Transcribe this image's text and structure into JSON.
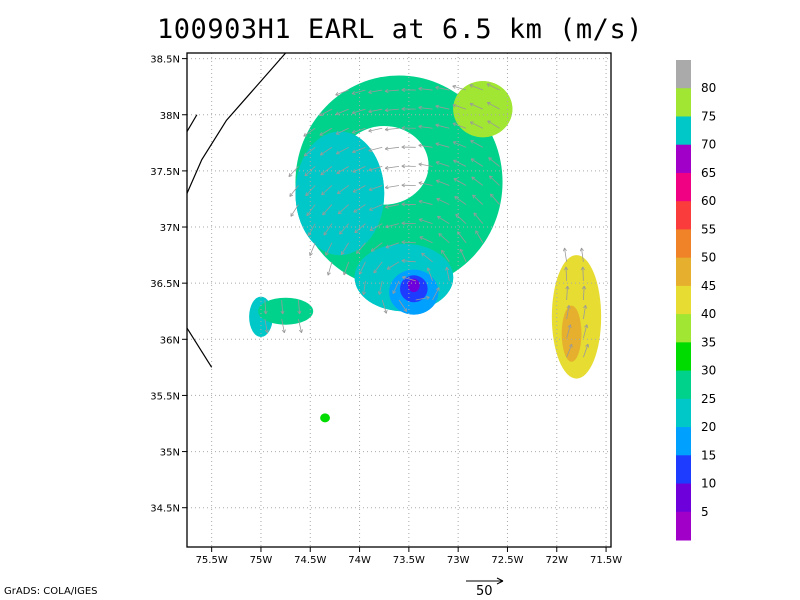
{
  "title": "100903H1 EARL at 6.5 km (m/s)",
  "credit": "GrADS: COLA/IGES",
  "vector_reference": {
    "label": "50",
    "value": 50
  },
  "chart_data": {
    "type": "heatmap",
    "title": "100903H1 EARL at 6.5 km (m/s)",
    "x_axis": {
      "range": [
        -75.75,
        -71.45
      ],
      "ticks": [
        {
          "value": -75.5,
          "label": "75.5W"
        },
        {
          "value": -75.0,
          "label": "75W"
        },
        {
          "value": -74.5,
          "label": "74.5W"
        },
        {
          "value": -74.0,
          "label": "74W"
        },
        {
          "value": -73.5,
          "label": "73.5W"
        },
        {
          "value": -73.0,
          "label": "73W"
        },
        {
          "value": -72.5,
          "label": "72.5W"
        },
        {
          "value": -72.0,
          "label": "72W"
        },
        {
          "value": -71.5,
          "label": "71.5W"
        }
      ]
    },
    "y_axis": {
      "range": [
        34.15,
        38.55
      ],
      "ticks": [
        {
          "value": 34.5,
          "label": "34.5N"
        },
        {
          "value": 35.0,
          "label": "35N"
        },
        {
          "value": 35.5,
          "label": "35.5N"
        },
        {
          "value": 36.0,
          "label": "36N"
        },
        {
          "value": 36.5,
          "label": "36.5N"
        },
        {
          "value": 37.0,
          "label": "37N"
        },
        {
          "value": 37.5,
          "label": "37.5N"
        },
        {
          "value": 38.0,
          "label": "38N"
        },
        {
          "value": 38.5,
          "label": "38.5N"
        }
      ]
    },
    "grid": true,
    "colorbar": {
      "position": "right",
      "levels": [
        5,
        10,
        15,
        20,
        25,
        30,
        35,
        40,
        45,
        50,
        55,
        60,
        65,
        70,
        75,
        80
      ],
      "colors": [
        "#a000c8",
        "#6e00dc",
        "#1e3cff",
        "#00a0ff",
        "#00c8c8",
        "#00d28c",
        "#00dc00",
        "#a0e632",
        "#e6dc32",
        "#e6af2d",
        "#f08228",
        "#fa3c3c",
        "#f00082",
        "#a000c8",
        "#00c8c8",
        "#a0e632",
        "#aaaaaa"
      ]
    },
    "wind_speed_regions": [
      {
        "name": "outer-ring",
        "speed": 25,
        "center": [
          -73.6,
          37.4
        ],
        "radius": [
          1.05,
          0.95
        ],
        "hole_radius": [
          0.45,
          0.35
        ],
        "hole_center": [
          -73.75,
          37.55
        ]
      },
      {
        "name": "ne-max",
        "speed": 35,
        "center": [
          -72.75,
          38.05
        ],
        "radius": [
          0.3,
          0.25
        ]
      },
      {
        "name": "west-band",
        "speed": 20,
        "center": [
          -74.2,
          37.3
        ],
        "radius": [
          0.45,
          0.55
        ]
      },
      {
        "name": "eye-wall-south",
        "speed": 20,
        "center": [
          -73.55,
          36.55
        ],
        "radius": [
          0.5,
          0.3
        ]
      },
      {
        "name": "eye-ring",
        "speed": 15,
        "center": [
          -73.45,
          36.42
        ],
        "radius": [
          0.25,
          0.2
        ]
      },
      {
        "name": "eye-core",
        "speed": 10,
        "center": [
          -73.45,
          36.45
        ],
        "radius": [
          0.14,
          0.12
        ]
      },
      {
        "name": "eye-center",
        "speed": 5,
        "center": [
          -73.45,
          36.48
        ],
        "radius": [
          0.06,
          0.06
        ]
      },
      {
        "name": "west-patch",
        "speed": 20,
        "center": [
          -75.0,
          36.2
        ],
        "radius": [
          0.12,
          0.18
        ]
      },
      {
        "name": "west-patch-b",
        "speed": 25,
        "center": [
          -74.75,
          36.25
        ],
        "radius": [
          0.28,
          0.12
        ]
      },
      {
        "name": "small-patch",
        "speed": 30,
        "center": [
          -74.35,
          35.3
        ],
        "radius": [
          0.05,
          0.04
        ]
      },
      {
        "name": "east-band",
        "speed": 40,
        "center": [
          -71.8,
          36.2
        ],
        "radius": [
          0.25,
          0.55
        ]
      },
      {
        "name": "east-band-core",
        "speed": 45,
        "center": [
          -71.85,
          36.05
        ],
        "radius": [
          0.1,
          0.25
        ]
      }
    ],
    "coastline_lon_lat": [
      [
        [
          -74.75,
          38.55
        ],
        [
          -74.85,
          38.45
        ],
        [
          -75.1,
          38.2
        ],
        [
          -75.35,
          37.95
        ],
        [
          -75.6,
          37.6
        ],
        [
          -75.75,
          37.3
        ]
      ],
      [
        [
          -75.65,
          38.0
        ],
        [
          -75.75,
          37.85
        ]
      ],
      [
        [
          -75.75,
          36.1
        ],
        [
          -75.5,
          35.75
        ]
      ]
    ]
  }
}
